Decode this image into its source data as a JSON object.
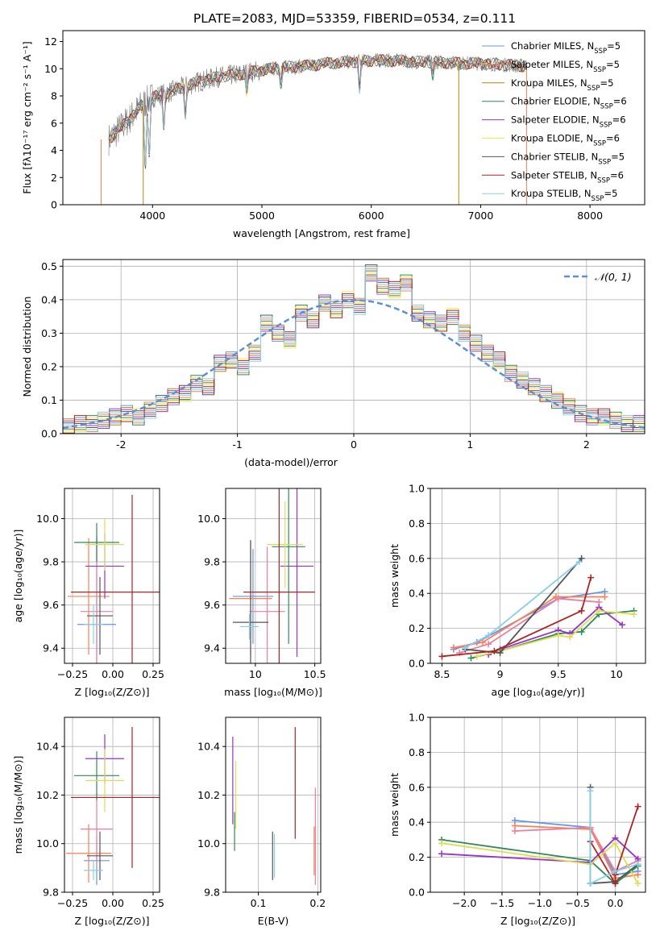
{
  "figure": {
    "title": "PLATE=2083, MJD=53359, FIBERID=0534, z=0.111"
  },
  "labels": {
    "spec_xlabel": "wavelength [Angstrom, rest frame]",
    "spec_ylabel": "Flux [fλ10⁻¹⁷ erg cm⁻² s⁻¹ A⁻¹]",
    "hist_xlabel": "(data-model)/error",
    "hist_ylabel": "Normed distribution",
    "hist_legend": "𝒩(0, 1)",
    "z_xlabel": "Z [log₁₀(Z/Z⊙)]",
    "mass_xlabel": "mass [log₁₀(M/M⊙)]",
    "ebv_xlabel": "E(B-V)",
    "age_ylabel": "age  [log₁₀(age/yr)]",
    "mass_ylabel": "mass [log₁₀(M/M⊙)]",
    "age_xlabel": "age  [log₁₀(age/yr)]",
    "mw_ylabel": "mass weight"
  },
  "chart_data": [
    {
      "id": "spectrum",
      "type": "line",
      "xlabel": "wavelength [Angstrom, rest frame]",
      "ylabel": "Flux [fλ10⁻¹⁷ erg cm⁻² s⁻¹ A⁻¹]",
      "xlim": [
        3180,
        8500
      ],
      "ylim": [
        0,
        12.8
      ],
      "xticks": [
        4000,
        5000,
        6000,
        7000,
        8000
      ],
      "yticks": [
        0,
        2,
        4,
        6,
        8,
        10,
        12
      ],
      "grid": false,
      "legend_position": "right",
      "data_envelope": {
        "x": [
          3600,
          3700,
          3800,
          3900,
          4000,
          4200,
          4400,
          4600,
          4800,
          5000,
          5200,
          5400,
          5600,
          5800,
          6000,
          6200,
          6400,
          6600,
          6800,
          7000,
          7200,
          7400
        ],
        "y": [
          4.8,
          5.6,
          6.4,
          7.3,
          7.9,
          8.4,
          9.0,
          9.4,
          9.6,
          9.9,
          10.1,
          10.2,
          10.4,
          10.5,
          10.6,
          10.6,
          10.5,
          10.5,
          10.4,
          10.4,
          10.3,
          10.2
        ]
      },
      "series": [
        {
          "name": "Chabrier MILES, N_SSP=5",
          "color": "#6495ed"
        },
        {
          "name": "Salpeter MILES, N_SSP=5",
          "color": "#ff7f50"
        },
        {
          "name": "Kroupa MILES, N_SSP=5",
          "color": "#b8860b"
        },
        {
          "name": "Chabrier ELODIE, N_SSP=6",
          "color": "#2e8b57"
        },
        {
          "name": "Salpeter ELODIE, N_SSP=6",
          "color": "#9932cc"
        },
        {
          "name": "Kroupa ELODIE, N_SSP=6",
          "color": "#eeee44"
        },
        {
          "name": "Chabrier STELIB, N_SSP=5",
          "color": "#555555"
        },
        {
          "name": "Salpeter STELIB, N_SSP=6",
          "color": "#b22222"
        },
        {
          "name": "Kroupa STELIB, N_SSP=5",
          "color": "#87ceeb"
        }
      ]
    },
    {
      "id": "residuals",
      "type": "line",
      "xlabel": "(data-model)/error",
      "ylabel": "Normed distribution",
      "xlim": [
        -2.5,
        2.5
      ],
      "ylim": [
        0,
        0.52
      ],
      "xticks": [
        -2,
        -1,
        0,
        1,
        2
      ],
      "yticks": [
        0.0,
        0.1,
        0.2,
        0.3,
        0.4,
        0.5
      ],
      "grid": true,
      "legend_position": "top-right",
      "normal_curve_label": "𝒩(0, 1)",
      "bin_edges_step": 0.1,
      "bins": [
        -2.5,
        -2.4,
        -2.3,
        -2.2,
        -2.1,
        -2.0,
        -1.9,
        -1.8,
        -1.7,
        -1.6,
        -1.5,
        -1.4,
        -1.3,
        -1.2,
        -1.1,
        -1.0,
        -0.9,
        -0.8,
        -0.7,
        -0.6,
        -0.5,
        -0.4,
        -0.3,
        -0.2,
        -0.1,
        0.0,
        0.1,
        0.2,
        0.3,
        0.4,
        0.5,
        0.6,
        0.7,
        0.8,
        0.9,
        1.0,
        1.1,
        1.2,
        1.3,
        1.4,
        1.5,
        1.6,
        1.7,
        1.8,
        1.9,
        2.0,
        2.1,
        2.2,
        2.3,
        2.4
      ],
      "hist_values": [
        0.02,
        0.03,
        0.03,
        0.04,
        0.05,
        0.06,
        0.05,
        0.07,
        0.09,
        0.11,
        0.12,
        0.15,
        0.14,
        0.21,
        0.22,
        0.2,
        0.24,
        0.33,
        0.3,
        0.28,
        0.36,
        0.34,
        0.39,
        0.37,
        0.4,
        0.38,
        0.48,
        0.44,
        0.43,
        0.45,
        0.36,
        0.34,
        0.33,
        0.35,
        0.3,
        0.27,
        0.24,
        0.22,
        0.18,
        0.16,
        0.14,
        0.12,
        0.1,
        0.08,
        0.06,
        0.05,
        0.05,
        0.04,
        0.03,
        0.03
      ]
    },
    {
      "id": "age_vs_Z",
      "type": "scatter",
      "xlabel": "Z [log₁₀(Z/Z⊙)]",
      "ylabel": "age  [log₁₀(age/yr)]",
      "xlim": [
        -0.3,
        0.29
      ],
      "ylim": [
        9.33,
        10.14
      ],
      "xticks": [
        -0.25,
        0.0,
        0.25
      ],
      "xticklabels": [
        "−0.25",
        "0.00",
        "0.25"
      ],
      "yticks": [
        9.4,
        9.6,
        9.8,
        10.0
      ],
      "grid": true,
      "points": [
        {
          "x": -0.1,
          "xerr": 0.12,
          "y": 9.51,
          "yerr": 0.4,
          "color": "#6495ed"
        },
        {
          "x": -0.15,
          "xerr": 0.13,
          "y": 9.64,
          "yerr": 0.27,
          "color": "#ff7f50"
        },
        {
          "x": -0.1,
          "xerr": 0.1,
          "y": 9.57,
          "yerr": 0.35,
          "color": "#ee7ca0"
        },
        {
          "x": -0.1,
          "xerr": 0.14,
          "y": 9.89,
          "yerr": 0.09,
          "color": "#2e8b57"
        },
        {
          "x": -0.05,
          "xerr": 0.12,
          "y": 9.78,
          "yerr": 0.15,
          "color": "#9932cc"
        },
        {
          "x": -0.05,
          "xerr": 0.12,
          "y": 9.88,
          "yerr": 0.12,
          "color": "#dddd55"
        },
        {
          "x": -0.08,
          "xerr": 0.08,
          "y": 9.55,
          "yerr": 0.18,
          "color": "#555555"
        },
        {
          "x": 0.12,
          "xerr": 0.38,
          "y": 9.66,
          "yerr": 0.45,
          "color": "#b22222"
        },
        {
          "x": -0.12,
          "xerr": 0.06,
          "y": 9.51,
          "yerr": 0.09,
          "color": "#87ceeb"
        }
      ]
    },
    {
      "id": "age_vs_mass",
      "type": "scatter",
      "xlabel": "mass [log₁₀(M/M⊙)]",
      "ylabel": "",
      "xlim": [
        9.75,
        10.55
      ],
      "ylim": [
        9.33,
        10.14
      ],
      "xticks": [
        10.0,
        10.5
      ],
      "yticks": [
        9.4,
        9.6,
        9.8,
        10.0
      ],
      "grid": true,
      "points": [
        {
          "x": 9.98,
          "xerr": 0.17,
          "y": 9.64,
          "yerr": 0.22,
          "color": "#6495ed"
        },
        {
          "x": 9.96,
          "xerr": 0.18,
          "y": 9.63,
          "yerr": 0.27,
          "color": "#ff7f50"
        },
        {
          "x": 10.1,
          "xerr": 0.15,
          "y": 9.57,
          "yerr": 0.3,
          "color": "#ee7ca0"
        },
        {
          "x": 10.28,
          "xerr": 0.14,
          "y": 9.87,
          "yerr": 0.45,
          "color": "#2e8b57"
        },
        {
          "x": 10.35,
          "xerr": 0.14,
          "y": 9.78,
          "yerr": 0.42,
          "color": "#9932cc"
        },
        {
          "x": 10.25,
          "xerr": 0.15,
          "y": 9.88,
          "yerr": 0.2,
          "color": "#dddd55"
        },
        {
          "x": 9.96,
          "xerr": 0.15,
          "y": 9.52,
          "yerr": 0.38,
          "color": "#555555"
        },
        {
          "x": 10.2,
          "xerr": 0.3,
          "y": 9.66,
          "yerr": 0.5,
          "color": "#b22222"
        },
        {
          "x": 9.95,
          "xerr": 0.08,
          "y": 9.5,
          "yerr": 0.06,
          "color": "#87ceeb"
        }
      ]
    },
    {
      "id": "mw_vs_age",
      "type": "line",
      "xlabel": "age  [log₁₀(age/yr)]",
      "ylabel": "mass weight",
      "xlim": [
        8.4,
        10.25
      ],
      "ylim": [
        0,
        1
      ],
      "xticks": [
        8.5,
        9.0,
        9.5,
        10.0
      ],
      "yticks": [
        0.0,
        0.2,
        0.4,
        0.6,
        0.8,
        1.0
      ],
      "grid": true,
      "series": [
        {
          "name": "Chabrier MILES",
          "color": "#6495ed",
          "x": [
            8.6,
            8.8,
            9.5,
            9.9
          ],
          "y": [
            0.08,
            0.12,
            0.37,
            0.41
          ]
        },
        {
          "name": "Salpeter MILES",
          "color": "#ff7f50",
          "x": [
            8.6,
            8.85,
            9.48,
            9.9
          ],
          "y": [
            0.09,
            0.12,
            0.38,
            0.38
          ]
        },
        {
          "name": "Kroupa MILES",
          "color": "#ee7ca0",
          "x": [
            8.65,
            8.9,
            9.5,
            9.85
          ],
          "y": [
            0.06,
            0.11,
            0.37,
            0.35
          ]
        },
        {
          "name": "Chabrier ELODIE",
          "color": "#2e8b57",
          "x": [
            8.75,
            9.0,
            9.5,
            9.7,
            9.85,
            10.15
          ],
          "y": [
            0.03,
            0.07,
            0.17,
            0.18,
            0.28,
            0.3
          ]
        },
        {
          "name": "Salpeter ELODIE",
          "color": "#9932cc",
          "x": [
            8.9,
            9.0,
            9.5,
            9.6,
            9.85,
            10.05
          ],
          "y": [
            0.05,
            0.08,
            0.19,
            0.17,
            0.32,
            0.22
          ]
        },
        {
          "name": "Kroupa ELODIE",
          "color": "#dddd55",
          "x": [
            8.8,
            9.0,
            9.5,
            9.6,
            9.85,
            10.15
          ],
          "y": [
            0.04,
            0.07,
            0.16,
            0.15,
            0.3,
            0.28
          ]
        },
        {
          "name": "Chabrier STELIB",
          "color": "#555555",
          "x": [
            8.7,
            9.0,
            9.7
          ],
          "y": [
            0.08,
            0.06,
            0.6
          ]
        },
        {
          "name": "Salpeter STELIB",
          "color": "#b22222",
          "x": [
            8.5,
            8.95,
            9.7,
            9.78
          ],
          "y": [
            0.04,
            0.07,
            0.3,
            0.49
          ]
        },
        {
          "name": "Kroupa STELIB",
          "color": "#87ceeb",
          "x": [
            8.7,
            8.9,
            9.68
          ],
          "y": [
            0.09,
            0.16,
            0.58
          ]
        }
      ]
    },
    {
      "id": "mass_vs_Z",
      "type": "scatter",
      "xlabel": "Z [log₁₀(Z/Z⊙)]",
      "ylabel": "mass [log₁₀(M/M⊙)]",
      "xlim": [
        -0.3,
        0.29
      ],
      "ylim": [
        9.8,
        10.52
      ],
      "xticks": [
        -0.25,
        0.0,
        0.25
      ],
      "xticklabels": [
        "−0.25",
        "0.00",
        "0.25"
      ],
      "yticks": [
        9.8,
        10.0,
        10.2,
        10.4
      ],
      "grid": true,
      "points": [
        {
          "x": -0.1,
          "xerr": 0.08,
          "y": 9.93,
          "yerr": 0.1,
          "color": "#6495ed"
        },
        {
          "x": -0.15,
          "xerr": 0.14,
          "y": 9.96,
          "yerr": 0.12,
          "color": "#ff7f50"
        },
        {
          "x": -0.1,
          "xerr": 0.1,
          "y": 10.06,
          "yerr": 0.15,
          "color": "#ee7ca0"
        },
        {
          "x": -0.1,
          "xerr": 0.14,
          "y": 10.28,
          "yerr": 0.1,
          "color": "#2e8b57"
        },
        {
          "x": -0.05,
          "xerr": 0.12,
          "y": 10.35,
          "yerr": 0.1,
          "color": "#9932cc"
        },
        {
          "x": -0.05,
          "xerr": 0.12,
          "y": 10.26,
          "yerr": 0.13,
          "color": "#dddd55"
        },
        {
          "x": -0.08,
          "xerr": 0.08,
          "y": 9.95,
          "yerr": 0.1,
          "color": "#555555"
        },
        {
          "x": 0.12,
          "xerr": 0.38,
          "y": 10.19,
          "yerr": 0.29,
          "color": "#b22222"
        },
        {
          "x": -0.12,
          "xerr": 0.06,
          "y": 9.89,
          "yerr": 0.04,
          "color": "#87ceeb"
        }
      ]
    },
    {
      "id": "mass_vs_ebv",
      "type": "scatter",
      "xlabel": "E(B-V)",
      "ylabel": "",
      "xlim": [
        0.045,
        0.205
      ],
      "ylim": [
        9.8,
        10.52
      ],
      "xticks": [
        0.1,
        0.2
      ],
      "yticks": [
        9.8,
        10.0,
        10.2,
        10.4
      ],
      "grid": true,
      "points": [
        {
          "x": 0.057,
          "y": 10.26,
          "yerr": 0.18,
          "color": "#9932cc"
        },
        {
          "x": 0.06,
          "y": 10.05,
          "yerr": 0.08,
          "color": "#2e8b57"
        },
        {
          "x": 0.062,
          "y": 10.2,
          "yerr": 0.14,
          "color": "#dddd55"
        },
        {
          "x": 0.124,
          "y": 9.95,
          "yerr": 0.1,
          "color": "#555555"
        },
        {
          "x": 0.127,
          "y": 9.95,
          "yerr": 0.09,
          "color": "#87ceeb"
        },
        {
          "x": 0.162,
          "y": 10.25,
          "yerr": 0.23,
          "color": "#b22222"
        },
        {
          "x": 0.196,
          "y": 10.03,
          "yerr": 0.2,
          "color": "#ee7ca0"
        },
        {
          "x": 0.194,
          "y": 9.97,
          "yerr": 0.1,
          "color": "#ff7f50"
        }
      ]
    },
    {
      "id": "mw_vs_Z",
      "type": "line",
      "xlabel": "Z [log₁₀(Z/Z⊙)]",
      "ylabel": "mass weight",
      "xlim": [
        -2.45,
        0.4
      ],
      "ylim": [
        0,
        1
      ],
      "xticks": [
        -2.0,
        -1.5,
        -1.0,
        -0.5,
        0.0
      ],
      "xticklabels": [
        "−2.0",
        "−1.5",
        "−1.0",
        "−0.5",
        "0.0"
      ],
      "yticks": [
        0.0,
        0.2,
        0.4,
        0.6,
        0.8,
        1.0
      ],
      "grid": true,
      "series": [
        {
          "name": "Chabrier MILES",
          "color": "#6495ed",
          "x": [
            -1.33,
            -0.33,
            0.0,
            0.3
          ],
          "y": [
            0.41,
            0.37,
            0.1,
            0.12
          ]
        },
        {
          "name": "Salpeter MILES",
          "color": "#ff7f50",
          "x": [
            -1.33,
            -0.33,
            0.0,
            0.3
          ],
          "y": [
            0.38,
            0.36,
            0.08,
            0.1
          ]
        },
        {
          "name": "Kroupa MILES",
          "color": "#ee7ca0",
          "x": [
            -1.33,
            -0.33,
            0.0,
            0.3
          ],
          "y": [
            0.35,
            0.37,
            0.12,
            0.18
          ]
        },
        {
          "name": "Chabrier ELODIE",
          "color": "#2e8b57",
          "x": [
            -2.3,
            -0.33,
            0.0,
            0.3
          ],
          "y": [
            0.3,
            0.18,
            0.05,
            0.15
          ]
        },
        {
          "name": "Salpeter ELODIE",
          "color": "#9932cc",
          "x": [
            -2.3,
            -0.33,
            0.0,
            0.3
          ],
          "y": [
            0.22,
            0.17,
            0.31,
            0.19
          ]
        },
        {
          "name": "Kroupa ELODIE",
          "color": "#dddd55",
          "x": [
            -2.3,
            -0.33,
            0.0,
            0.3
          ],
          "y": [
            0.28,
            0.16,
            0.28,
            0.05
          ]
        },
        {
          "name": "Chabrier STELIB",
          "color": "#555555",
          "x": [
            -0.33,
            -0.33,
            0.0,
            0.3
          ],
          "y": [
            0.6,
            0.05,
            0.06,
            0.16
          ]
        },
        {
          "name": "Salpeter STELIB",
          "color": "#b22222",
          "x": [
            -0.33,
            0.0,
            0.0,
            0.3
          ],
          "y": [
            0.29,
            0.05,
            0.1,
            0.49
          ]
        },
        {
          "name": "Kroupa STELIB",
          "color": "#87ceeb",
          "x": [
            -0.33,
            -0.33,
            0.0,
            0.3
          ],
          "y": [
            0.58,
            0.05,
            0.12,
            0.16
          ]
        }
      ]
    }
  ]
}
